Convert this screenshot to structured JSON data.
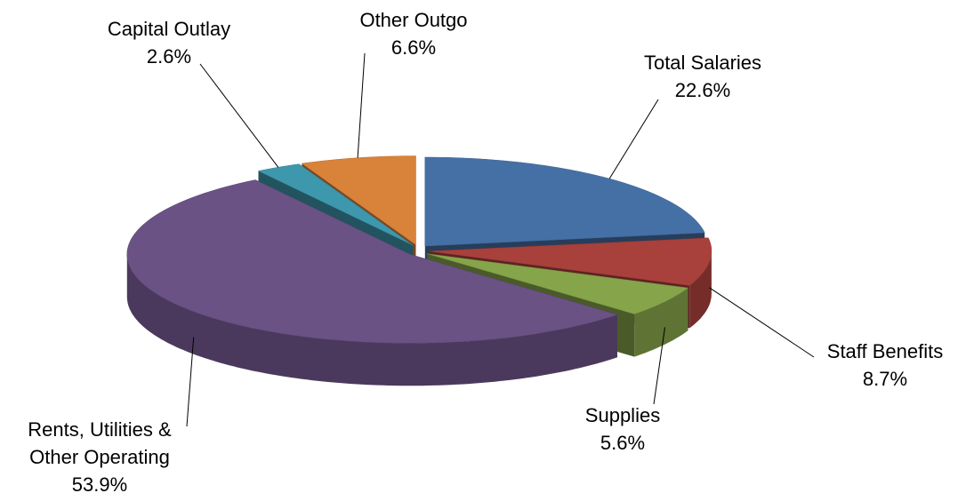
{
  "chart_data": {
    "type": "pie",
    "categories": [
      "Total Salaries",
      "Staff Benefits",
      "Supplies",
      "Rents, Utilities & Other Operating",
      "Capital Outlay",
      "Other Outgo"
    ],
    "values": [
      22.6,
      8.7,
      5.6,
      53.9,
      2.6,
      6.6
    ],
    "value_labels": [
      "22.6%",
      "8.7%",
      "5.6%",
      "53.9%",
      "2.6%",
      "6.6%"
    ],
    "colors": [
      "#4570a6",
      "#a8403c",
      "#86a44a",
      "#6a5285",
      "#3d97ad",
      "#d9823a"
    ]
  }
}
